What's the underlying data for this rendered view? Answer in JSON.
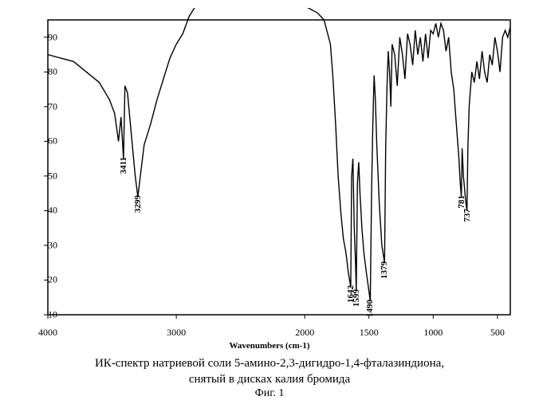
{
  "chart": {
    "type": "line",
    "xlabel": "Wavenumbers (cm-1)",
    "xlim": [
      4000,
      400
    ],
    "ylim": [
      10,
      95
    ],
    "xticks": [
      4000,
      3000,
      2000,
      1500,
      1000,
      500
    ],
    "yticks": [
      10,
      20,
      30,
      40,
      50,
      60,
      70,
      80,
      90
    ],
    "line_color": "#000000",
    "line_width": 1.4,
    "background_color": "#ffffff",
    "axis_color": "#000000",
    "tick_fontsize": 12,
    "label_fontsize": 11,
    "peak_label_fontsize": 11,
    "points": [
      [
        4000,
        85
      ],
      [
        3900,
        84
      ],
      [
        3800,
        83
      ],
      [
        3700,
        80
      ],
      [
        3600,
        77
      ],
      [
        3520,
        72
      ],
      [
        3480,
        68
      ],
      [
        3450,
        60
      ],
      [
        3430,
        67
      ],
      [
        3411,
        55
      ],
      [
        3400,
        76
      ],
      [
        3380,
        74
      ],
      [
        3350,
        62
      ],
      [
        3320,
        50
      ],
      [
        3299,
        44
      ],
      [
        3280,
        50
      ],
      [
        3250,
        59
      ],
      [
        3200,
        65
      ],
      [
        3150,
        72
      ],
      [
        3100,
        78
      ],
      [
        3050,
        84
      ],
      [
        3000,
        88
      ],
      [
        2950,
        91
      ],
      [
        2900,
        96
      ],
      [
        2850,
        99
      ],
      [
        2800,
        100
      ],
      [
        2700,
        100
      ],
      [
        2600,
        100
      ],
      [
        2500,
        99
      ],
      [
        2400,
        99
      ],
      [
        2300,
        99
      ],
      [
        2200,
        99
      ],
      [
        2100,
        99
      ],
      [
        2000,
        99
      ],
      [
        1950,
        98
      ],
      [
        1900,
        97
      ],
      [
        1850,
        95
      ],
      [
        1800,
        88
      ],
      [
        1780,
        78
      ],
      [
        1760,
        65
      ],
      [
        1740,
        50
      ],
      [
        1720,
        40
      ],
      [
        1700,
        32
      ],
      [
        1680,
        28
      ],
      [
        1660,
        22
      ],
      [
        1642,
        18
      ],
      [
        1635,
        50
      ],
      [
        1625,
        55
      ],
      [
        1615,
        35
      ],
      [
        1605,
        25
      ],
      [
        1599,
        17
      ],
      [
        1590,
        48
      ],
      [
        1580,
        54
      ],
      [
        1570,
        45
      ],
      [
        1555,
        35
      ],
      [
        1540,
        28
      ],
      [
        1520,
        22
      ],
      [
        1505,
        18
      ],
      [
        1490,
        14
      ],
      [
        1480,
        45
      ],
      [
        1470,
        65
      ],
      [
        1460,
        79
      ],
      [
        1450,
        72
      ],
      [
        1440,
        60
      ],
      [
        1420,
        42
      ],
      [
        1400,
        30
      ],
      [
        1379,
        25
      ],
      [
        1370,
        58
      ],
      [
        1360,
        75
      ],
      [
        1350,
        86
      ],
      [
        1340,
        80
      ],
      [
        1330,
        70
      ],
      [
        1320,
        88
      ],
      [
        1300,
        85
      ],
      [
        1280,
        76
      ],
      [
        1260,
        90
      ],
      [
        1240,
        85
      ],
      [
        1220,
        78
      ],
      [
        1200,
        91
      ],
      [
        1180,
        88
      ],
      [
        1160,
        82
      ],
      [
        1140,
        92
      ],
      [
        1120,
        85
      ],
      [
        1100,
        90
      ],
      [
        1080,
        83
      ],
      [
        1060,
        91
      ],
      [
        1040,
        84
      ],
      [
        1020,
        92
      ],
      [
        1000,
        91
      ],
      [
        980,
        94
      ],
      [
        960,
        90
      ],
      [
        940,
        94
      ],
      [
        920,
        92
      ],
      [
        900,
        86
      ],
      [
        880,
        90
      ],
      [
        860,
        80
      ],
      [
        840,
        75
      ],
      [
        820,
        65
      ],
      [
        800,
        55
      ],
      [
        790,
        48
      ],
      [
        781,
        44
      ],
      [
        775,
        58
      ],
      [
        765,
        50
      ],
      [
        755,
        46
      ],
      [
        745,
        42
      ],
      [
        737,
        40
      ],
      [
        730,
        58
      ],
      [
        720,
        70
      ],
      [
        700,
        80
      ],
      [
        680,
        77
      ],
      [
        660,
        83
      ],
      [
        640,
        78
      ],
      [
        620,
        86
      ],
      [
        600,
        80
      ],
      [
        580,
        77
      ],
      [
        560,
        85
      ],
      [
        540,
        82
      ],
      [
        520,
        90
      ],
      [
        500,
        86
      ],
      [
        480,
        80
      ],
      [
        460,
        90
      ],
      [
        440,
        92
      ],
      [
        420,
        90
      ],
      [
        400,
        93
      ]
    ],
    "peak_labels": [
      {
        "wn": 3411,
        "text": "3411",
        "y": 55
      },
      {
        "wn": 3299,
        "text": "3299",
        "y": 44
      },
      {
        "wn": 1642,
        "text": "1642",
        "y": 18
      },
      {
        "wn": 1599,
        "text": "1599",
        "y": 17
      },
      {
        "wn": 1490,
        "text": "1490",
        "y": 14
      },
      {
        "wn": 1379,
        "text": "1379",
        "y": 25
      },
      {
        "wn": 781,
        "text": "781",
        "y": 44
      },
      {
        "wn": 737,
        "text": "737",
        "y": 40
      }
    ]
  },
  "caption": {
    "line1": "ИК-спектр натриевой соли 5-амино-2,3-дигидро-1,4-фталазиндиона,",
    "line2": "снятый в дисках калия бромида",
    "fig": "Фиг. 1",
    "fontsize": 15
  }
}
